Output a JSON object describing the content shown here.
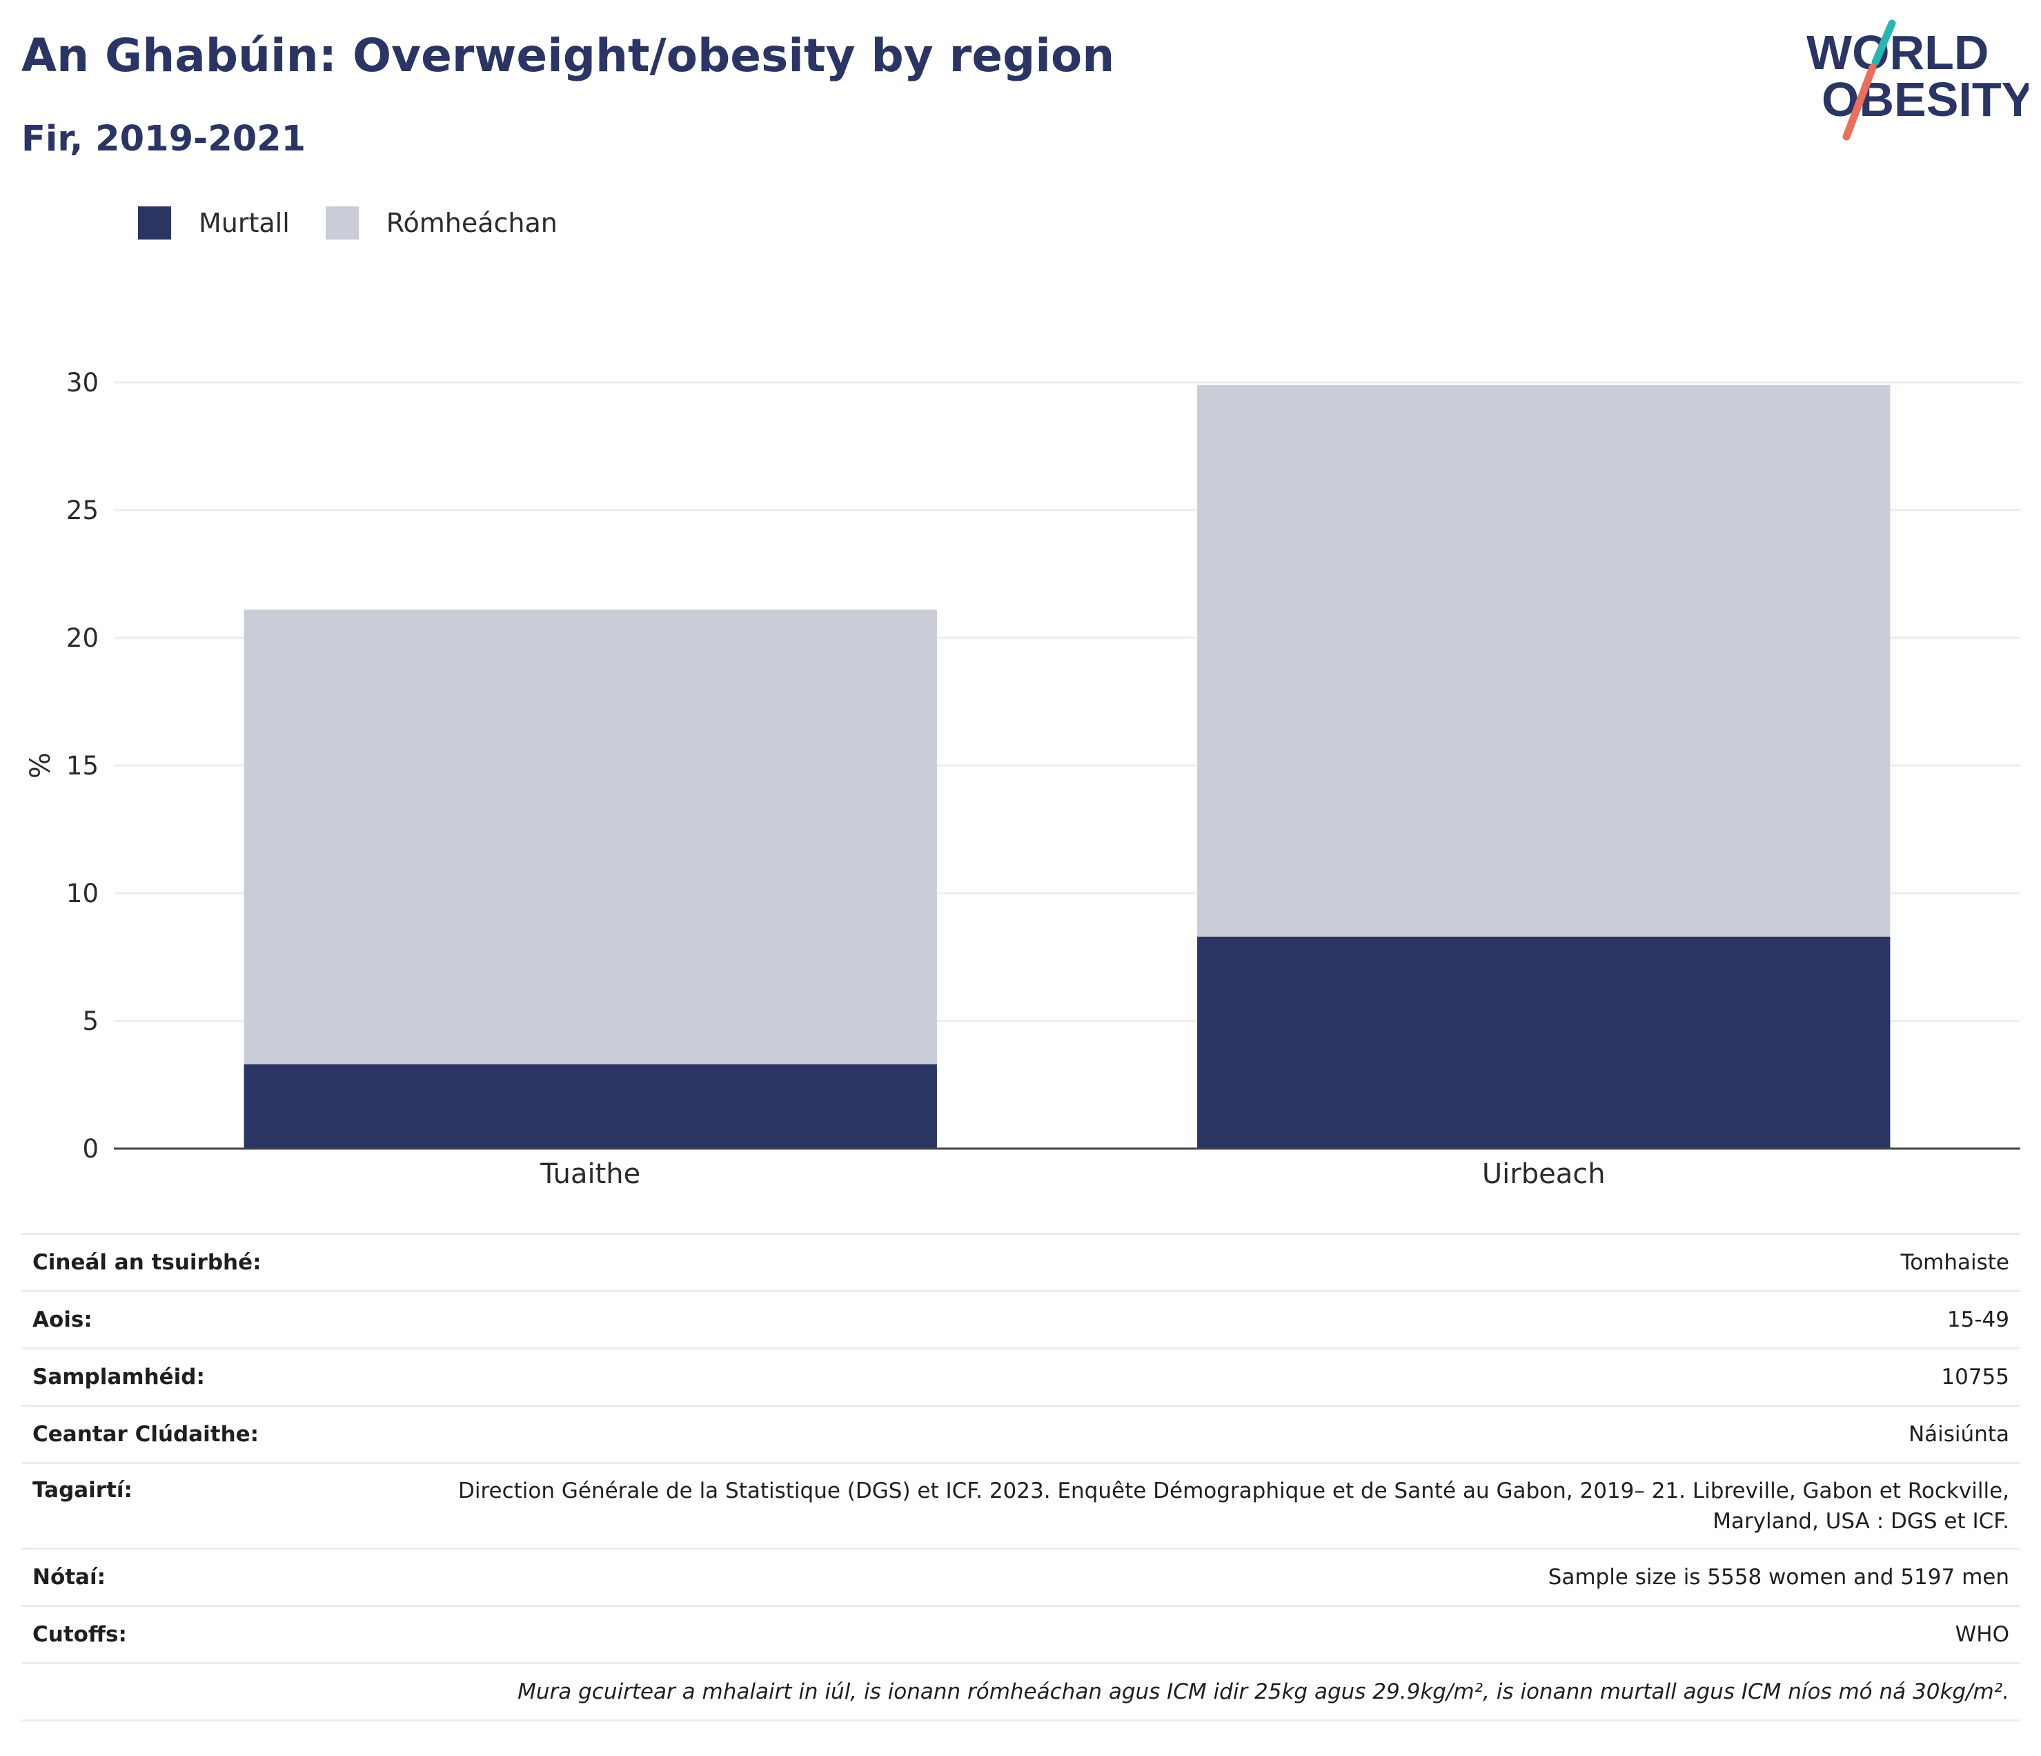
{
  "header": {
    "title": "An Ghabúin: Overweight/obesity by region",
    "subtitle": "Fir, 2019-2021"
  },
  "logo": {
    "line1": "WORLD",
    "line2": "OBESITY"
  },
  "colors": {
    "obesity": "#2a3564",
    "overweight": "#cacdd8",
    "title": "#2a3564",
    "grid": "#ebedf2",
    "logo_teal": "#2bb5b2",
    "logo_coral": "#e86f5e"
  },
  "chart_data": {
    "type": "bar",
    "stacked": true,
    "categories": [
      "Tuaithe",
      "Uirbeach"
    ],
    "series": [
      {
        "name": "Murtall",
        "values": [
          3.3,
          8.3
        ]
      },
      {
        "name": "Rómheáchan",
        "values": [
          17.8,
          21.6
        ]
      }
    ],
    "ylabel": "%",
    "ylim": [
      0,
      30
    ],
    "yticks": [
      0,
      5,
      10,
      15,
      20,
      25,
      30
    ],
    "grid": true,
    "legend_position": "top-left"
  },
  "info": {
    "rows": [
      {
        "key": "Cineál an tsuirbhé:",
        "value": "Tomhaiste"
      },
      {
        "key": "Aois:",
        "value": "15-49"
      },
      {
        "key": "Samplamhéid:",
        "value": "10755"
      },
      {
        "key": "Ceantar Clúdaithe:",
        "value": "Náisiúnta"
      },
      {
        "key": "Tagairtí:",
        "value": "Direction Générale de la Statistique (DGS) et ICF. 2023. Enquête Démographique et de Santé au Gabon, 2019– 21. Libreville, Gabon et Rockville, Maryland, USA : DGS et ICF."
      },
      {
        "key": "Nótaí:",
        "value": "Sample size is 5558 women and 5197 men"
      },
      {
        "key": "Cutoffs:",
        "value": "WHO"
      }
    ],
    "footnote": "Mura gcuirtear a mhalairt in iúl, is ionann rómheáchan agus ICM idir 25kg agus 29.9kg/m², is ionann murtall agus ICM níos mó ná 30kg/m²."
  }
}
